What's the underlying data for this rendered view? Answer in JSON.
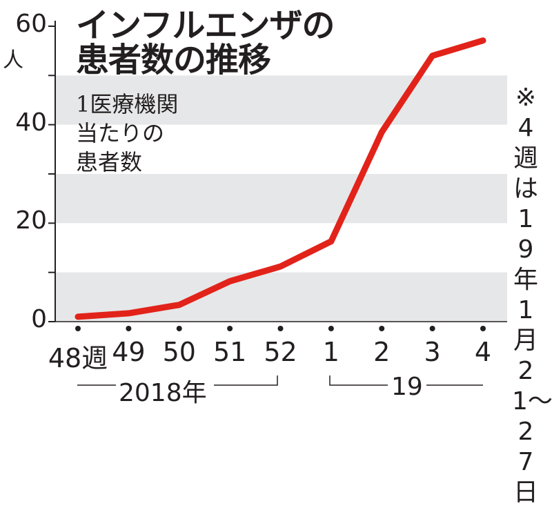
{
  "title_line1": "インフルエンザの",
  "title_line2": "患者数の推移",
  "subtitle_lines": [
    "1医療機関",
    "当たりの",
    "患者数"
  ],
  "y_unit": "人",
  "note": "※4週は19年1月21〜27日",
  "year_2018": "2018年",
  "year_2019": "19",
  "colors": {
    "line": "#e2231a",
    "band": "#e6e7e8",
    "text": "#231f20"
  },
  "chart_data": {
    "type": "line",
    "categories": [
      "48週",
      "49",
      "50",
      "51",
      "52",
      "1",
      "2",
      "3",
      "4"
    ],
    "values": [
      1.0,
      1.7,
      3.4,
      8.2,
      11.2,
      16.3,
      38.5,
      54.0,
      57.1
    ],
    "ylim": [
      0,
      60
    ],
    "yticks": [
      "0",
      "20",
      "40",
      "60"
    ],
    "grid": "horizontal bands"
  }
}
